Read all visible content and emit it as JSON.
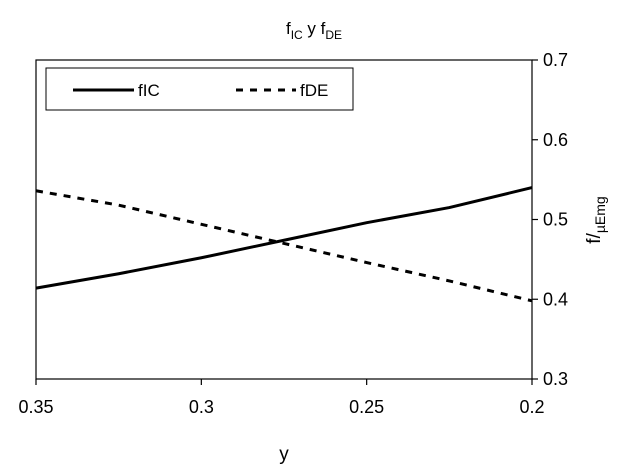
{
  "chart_data": {
    "type": "line",
    "title": {
      "main": "f",
      "sub1": "IC",
      "mid": " y f",
      "sub2": "DE"
    },
    "xlabel": "y",
    "ylabel": {
      "main": "f/",
      "sub": "µEmg"
    },
    "x": [
      0.35,
      0.325,
      0.3,
      0.275,
      0.25,
      0.225,
      0.2
    ],
    "series": [
      {
        "name": "fIC",
        "style": "solid",
        "color": "#000000",
        "values": [
          0.414,
          0.432,
          0.452,
          0.474,
          0.496,
          0.515,
          0.54
        ]
      },
      {
        "name": "fDE",
        "style": "dashed",
        "color": "#000000",
        "values": [
          0.536,
          0.518,
          0.494,
          0.47,
          0.446,
          0.423,
          0.398
        ]
      }
    ],
    "xlim": [
      0.35,
      0.2
    ],
    "ylim": [
      0.3,
      0.7
    ],
    "x_ticks": [
      "0.35",
      "0.3",
      "0.25",
      "0.2"
    ],
    "x_tick_values": [
      0.35,
      0.3,
      0.25,
      0.2
    ],
    "y_ticks": [
      "0.3",
      "0.4",
      "0.5",
      "0.6",
      "0.7"
    ],
    "y_tick_values": [
      0.3,
      0.4,
      0.5,
      0.6,
      0.7
    ],
    "x_reversed": true,
    "y_axis_side": "right",
    "grid": false,
    "legend_position": "top-left"
  }
}
